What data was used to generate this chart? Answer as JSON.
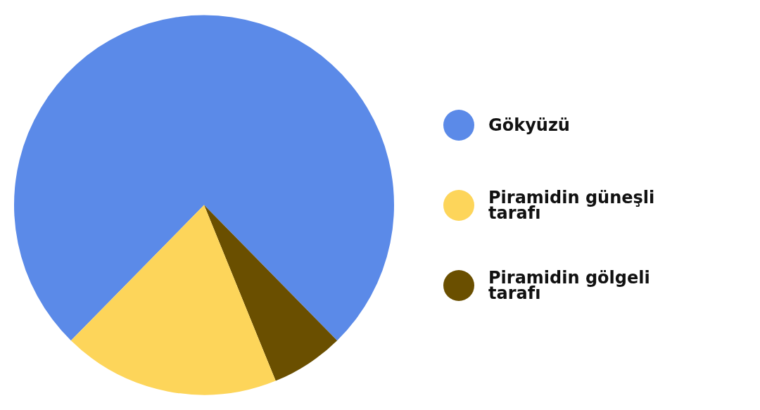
{
  "chart_data": {
    "type": "pie",
    "categories": [
      "Gökyüzü",
      "Piramidin güneşli tarafı",
      "Piramidin gölgeli tarafı"
    ],
    "values": [
      75.3,
      18.5,
      6.2
    ],
    "colors": [
      "#5b8ae8",
      "#fdd55a",
      "#6a4f00"
    ],
    "legend": "right"
  }
}
